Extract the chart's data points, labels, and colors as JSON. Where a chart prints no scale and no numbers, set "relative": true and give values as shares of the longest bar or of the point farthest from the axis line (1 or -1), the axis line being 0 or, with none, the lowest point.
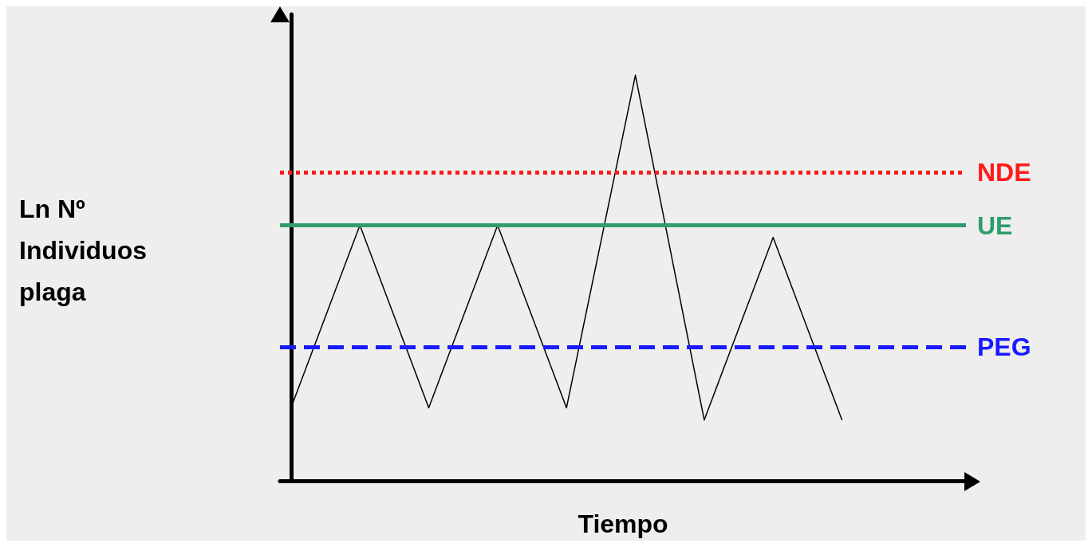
{
  "chart_data": {
    "type": "line",
    "xlabel": "Tiempo",
    "ylabel": "Ln Nº\nIndividuos\nplaga",
    "relative": true,
    "categories": [
      null,
      null,
      null,
      null,
      null,
      null,
      null,
      null,
      null
    ],
    "series": [
      {
        "color": "#000000",
        "values": [
          0.18,
          0.63,
          0.18,
          0.63,
          0.18,
          1,
          0.15,
          0.6,
          0.15
        ]
      }
    ],
    "ref_lines": [
      {
        "axis": "y",
        "value": 0.76,
        "label": "NDE",
        "color": "#ff1a1a",
        "line_style": "dotted"
      },
      {
        "axis": "y",
        "value": 0.63,
        "label": "UE",
        "color": "#2e9e6a",
        "line_style": "solid"
      },
      {
        "axis": "y",
        "value": 0.33,
        "label": "PEG",
        "color": "#1a1aff",
        "line_style": "dashed"
      }
    ],
    "grid": false,
    "marker": "none",
    "line_style": "solid"
  }
}
